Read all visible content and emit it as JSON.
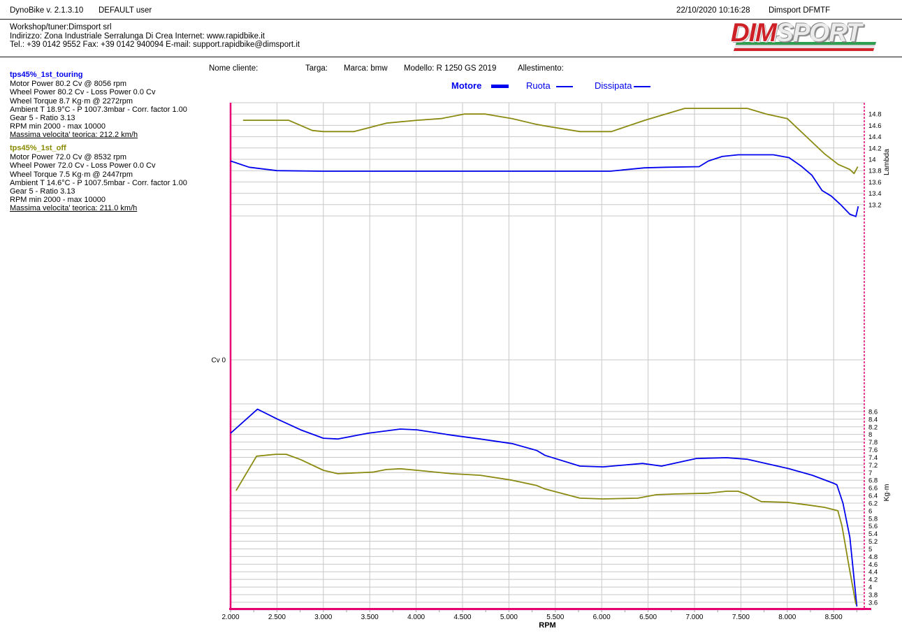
{
  "header": {
    "app_title": "DynoBike v. 2.1.3.10",
    "user": "DEFAULT user",
    "datetime": "22/10/2020 10:16:28",
    "device": "Dimsport DFMTF",
    "workshop_line1": "Workshop/tuner:Dimsport srl",
    "workshop_line2": "Indirizzo: Zona Industriale Serralunga Di Crea Internet: www.rapidbike.it",
    "workshop_line3": "Tel.: +39 0142 9552 Fax: +39 0142 940094 E-mail: support.rapidbike@dimsport.it",
    "logo_dim": "DIM",
    "logo_sport": "SPORT"
  },
  "vehicle": {
    "fields": [
      {
        "label": "Nome cliente:",
        "value": ""
      },
      {
        "label": "Targa:",
        "value": ""
      },
      {
        "label": "Marca:",
        "value": "bmw"
      },
      {
        "label": "Modello:",
        "value": "R 1250 GS 2019"
      },
      {
        "label": "Allestimento:",
        "value": ""
      }
    ]
  },
  "legend": {
    "color": "#0000ee",
    "items": [
      {
        "label": "Motore",
        "bold": true,
        "line": "thick"
      },
      {
        "label": "Ruota",
        "bold": false,
        "line": "thin"
      },
      {
        "label": "Dissipata",
        "bold": false,
        "line": "thin"
      }
    ]
  },
  "runs": [
    {
      "title": "tps45%_1st_touring",
      "color": "#0000ee",
      "lines": [
        "Motor Power 80.2 Cv  @ 8056 rpm",
        "Wheel Power 80.2 Cv  - Loss Power 0.0 Cv",
        "Wheel Torque 8.7 Kg·m  @ 2272rpm",
        "Ambient T 18.9°C - P 1007.3mbar - Corr. factor 1.00",
        "Gear 5 - Ratio 3.13",
        "RPM min 2000 - max 10000"
      ],
      "max_speed": "Massima velocita' teorica: 212.2 km/h"
    },
    {
      "title": "tps45%_1st_off",
      "color": "#8a8a00",
      "lines": [
        "Motor Power 72.0 Cv  @ 8532 rpm",
        "Wheel Power 72.0 Cv  - Loss Power 0.0 Cv",
        "Wheel Torque 7.5 Kg·m  @ 2447rpm",
        "Ambient T 14.6°C - P 1007.5mbar - Corr. factor 1.00",
        "Gear 5 - Ratio 3.13",
        "RPM min 2000 - max 10000"
      ],
      "max_speed": "Massima velocita' teorica: 211.0 km/h"
    }
  ],
  "chart_data": {
    "type": "line",
    "xlabel": "RPM",
    "x_range": [
      2000,
      8830
    ],
    "x_tick_values": [
      2000,
      2500,
      3000,
      3500,
      4000,
      4500,
      5000,
      5500,
      6000,
      6500,
      7000,
      7500,
      8000,
      8500
    ],
    "x_tick_labels": [
      "2.000",
      "2.500",
      "3.000",
      "3.500",
      "4.000",
      "4.500",
      "5.000",
      "5.500",
      "6.000",
      "6.500",
      "7.000",
      "7.500",
      "8.000",
      "8.500"
    ],
    "left_axis_label": "Cv 0",
    "axis_color": "#e60073",
    "grid_color": "#c8c8c8",
    "grid": true,
    "legend_position": "top",
    "panels": [
      {
        "id": "lambda",
        "ylabel": "Lambda",
        "y_range": [
          13.0,
          15.0
        ],
        "tick_step": 0.2,
        "tick_values": [
          14.8,
          14.6,
          14.4,
          14.2,
          14,
          13.8,
          13.6,
          13.4,
          13.2
        ]
      },
      {
        "id": "torque",
        "ylabel": "Kg·m",
        "y_range": [
          3.4,
          8.8
        ],
        "tick_step": 0.2,
        "tick_values": [
          8.6,
          8.4,
          8.2,
          8,
          7.8,
          7.6,
          7.4,
          7.2,
          7,
          6.8,
          6.6,
          6.4,
          6.2,
          6,
          5.8,
          5.6,
          5.4,
          5.2,
          5,
          4.8,
          4.6,
          4.4,
          4.2,
          4,
          3.8,
          3.6
        ]
      }
    ],
    "series": [
      {
        "name": "tps45%_1st_touring lambda",
        "panel": "lambda",
        "color": "#0000ee",
        "points": [
          [
            2000,
            13.97
          ],
          [
            2200,
            13.86
          ],
          [
            2500,
            13.8
          ],
          [
            3000,
            13.79
          ],
          [
            3500,
            13.79
          ],
          [
            4000,
            13.79
          ],
          [
            4500,
            13.79
          ],
          [
            5000,
            13.79
          ],
          [
            5500,
            13.79
          ],
          [
            6090,
            13.79
          ],
          [
            6460,
            13.85
          ],
          [
            6700,
            13.86
          ],
          [
            7050,
            13.87
          ],
          [
            7150,
            13.97
          ],
          [
            7300,
            14.05
          ],
          [
            7470,
            14.08
          ],
          [
            7850,
            14.08
          ],
          [
            8020,
            14.03
          ],
          [
            8150,
            13.88
          ],
          [
            8265,
            13.72
          ],
          [
            8375,
            13.45
          ],
          [
            8475,
            13.35
          ],
          [
            8575,
            13.2
          ],
          [
            8675,
            13.03
          ],
          [
            8740,
            12.99
          ],
          [
            8765,
            13.17
          ]
        ]
      },
      {
        "name": "tps45%_1st_off lambda",
        "panel": "lambda",
        "color": "#8a8a10",
        "points": [
          [
            2135,
            14.69
          ],
          [
            2625,
            14.69
          ],
          [
            2880,
            14.51
          ],
          [
            3000,
            14.49
          ],
          [
            3330,
            14.49
          ],
          [
            3680,
            14.64
          ],
          [
            4010,
            14.69
          ],
          [
            4270,
            14.72
          ],
          [
            4520,
            14.8
          ],
          [
            4745,
            14.8
          ],
          [
            5035,
            14.72
          ],
          [
            5290,
            14.62
          ],
          [
            5390,
            14.59
          ],
          [
            5765,
            14.49
          ],
          [
            6105,
            14.49
          ],
          [
            6465,
            14.69
          ],
          [
            6895,
            14.9
          ],
          [
            7570,
            14.9
          ],
          [
            7775,
            14.8
          ],
          [
            8000,
            14.72
          ],
          [
            8225,
            14.37
          ],
          [
            8400,
            14.1
          ],
          [
            8550,
            13.91
          ],
          [
            8675,
            13.82
          ],
          [
            8720,
            13.75
          ],
          [
            8760,
            13.87
          ]
        ]
      },
      {
        "name": "tps45%_1st_touring torque",
        "panel": "torque",
        "color": "#0000ee",
        "points": [
          [
            2000,
            8.03
          ],
          [
            2290,
            8.66
          ],
          [
            2505,
            8.4
          ],
          [
            2755,
            8.12
          ],
          [
            3000,
            7.9
          ],
          [
            3155,
            7.88
          ],
          [
            3480,
            8.03
          ],
          [
            3830,
            8.14
          ],
          [
            4010,
            8.12
          ],
          [
            4385,
            7.98
          ],
          [
            4690,
            7.88
          ],
          [
            5035,
            7.76
          ],
          [
            5300,
            7.58
          ],
          [
            5390,
            7.45
          ],
          [
            5765,
            7.17
          ],
          [
            6015,
            7.15
          ],
          [
            6440,
            7.24
          ],
          [
            6645,
            7.17
          ],
          [
            7020,
            7.37
          ],
          [
            7345,
            7.39
          ],
          [
            7570,
            7.35
          ],
          [
            8020,
            7.1
          ],
          [
            8270,
            6.93
          ],
          [
            8500,
            6.72
          ],
          [
            8535,
            6.68
          ],
          [
            8600,
            6.2
          ],
          [
            8675,
            5.3
          ],
          [
            8750,
            3.49
          ]
        ]
      },
      {
        "name": "tps45%_1st_off torque",
        "panel": "torque",
        "color": "#8a8a10",
        "points": [
          [
            2060,
            6.53
          ],
          [
            2280,
            7.43
          ],
          [
            2490,
            7.48
          ],
          [
            2600,
            7.48
          ],
          [
            2755,
            7.34
          ],
          [
            3000,
            7.06
          ],
          [
            3155,
            6.97
          ],
          [
            3330,
            6.99
          ],
          [
            3530,
            7.01
          ],
          [
            3680,
            7.08
          ],
          [
            3830,
            7.1
          ],
          [
            4010,
            7.06
          ],
          [
            4385,
            6.97
          ],
          [
            4690,
            6.93
          ],
          [
            5035,
            6.8
          ],
          [
            5300,
            6.66
          ],
          [
            5390,
            6.57
          ],
          [
            5765,
            6.33
          ],
          [
            6015,
            6.31
          ],
          [
            6390,
            6.33
          ],
          [
            6590,
            6.42
          ],
          [
            6795,
            6.44
          ],
          [
            7145,
            6.46
          ],
          [
            7345,
            6.51
          ],
          [
            7470,
            6.51
          ],
          [
            7570,
            6.42
          ],
          [
            7720,
            6.24
          ],
          [
            8000,
            6.22
          ],
          [
            8225,
            6.15
          ],
          [
            8400,
            6.09
          ],
          [
            8545,
            6.0
          ],
          [
            8590,
            5.6
          ],
          [
            8665,
            4.55
          ],
          [
            8740,
            3.55
          ]
        ]
      }
    ]
  }
}
